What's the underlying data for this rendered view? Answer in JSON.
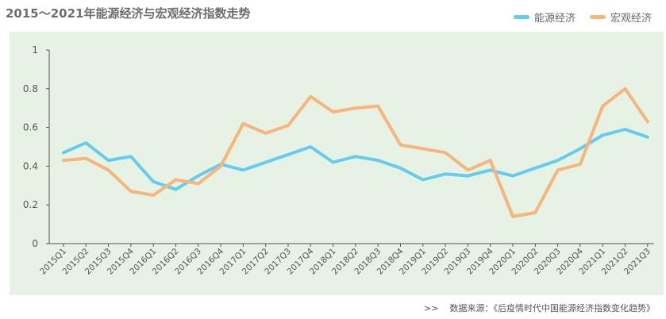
{
  "title": "2015～2021年能源经济与宏观经济指数走势",
  "source": {
    "marker": ">>",
    "text": "数据来源：《后疫情时代中国能源经济指数变化趋势》"
  },
  "colors": {
    "energy": "#66ccef",
    "macro": "#f7b47d",
    "plot_bg": "#e6f3e4",
    "axis": "#555555"
  },
  "chart_data": {
    "type": "line",
    "categories": [
      "2015Q1",
      "2015Q2",
      "2015Q3",
      "2015Q4",
      "2016Q1",
      "2016Q2",
      "2016Q3",
      "2016Q4",
      "2017Q1",
      "2017Q2",
      "2017Q3",
      "2017Q4",
      "2018Q1",
      "2018Q2",
      "2018Q3",
      "2018Q4",
      "2019Q1",
      "2019Q2",
      "2019Q3",
      "2019Q4",
      "2020Q1",
      "2020Q2",
      "2020Q3",
      "2020Q4",
      "2021Q1",
      "2021Q2",
      "2021Q3"
    ],
    "series": [
      {
        "name": "能源经济",
        "color": "#66ccef",
        "values": [
          0.47,
          0.52,
          0.43,
          0.45,
          0.32,
          0.28,
          0.35,
          0.41,
          0.38,
          0.42,
          0.46,
          0.5,
          0.42,
          0.45,
          0.43,
          0.39,
          0.33,
          0.36,
          0.35,
          0.38,
          0.35,
          0.39,
          0.43,
          0.49,
          0.56,
          0.59,
          0.55
        ]
      },
      {
        "name": "宏观经济",
        "color": "#f7b47d",
        "values": [
          0.43,
          0.44,
          0.38,
          0.27,
          0.25,
          0.33,
          0.31,
          0.4,
          0.62,
          0.57,
          0.61,
          0.76,
          0.68,
          0.7,
          0.71,
          0.51,
          0.49,
          0.47,
          0.38,
          0.43,
          0.14,
          0.16,
          0.38,
          0.41,
          0.71,
          0.8,
          0.63
        ]
      }
    ],
    "ylim": [
      0,
      1
    ],
    "yticks": [
      "0",
      "0.2",
      "0.4",
      "0.6",
      "0.8",
      "1"
    ],
    "ytick_values": [
      0,
      0.2,
      0.4,
      0.6,
      0.8,
      1
    ],
    "legend_position": "top-right",
    "grid": false
  }
}
